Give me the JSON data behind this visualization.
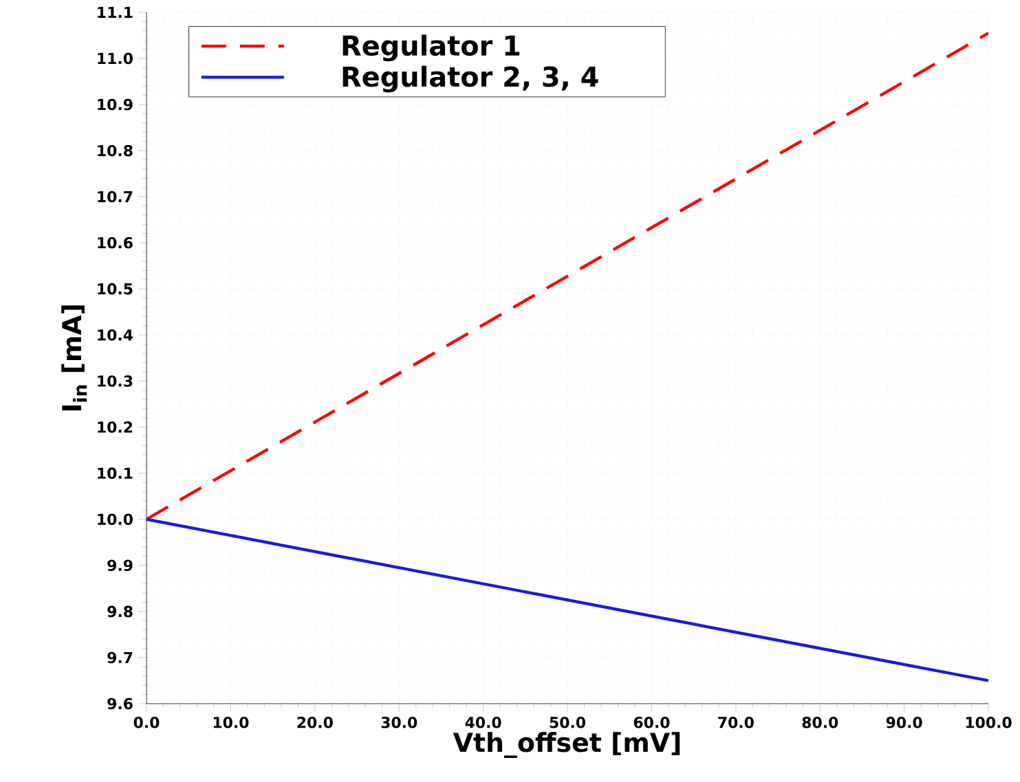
{
  "chart_data": {
    "type": "line",
    "xlabel": "Vth_offset [mV]",
    "ylabel": "I$_{in}$ [mA]",
    "x": [
      0,
      100
    ],
    "series": [
      {
        "name": "Regulator 1",
        "color": "#ff0000",
        "line_style": "dashed",
        "values": [
          10.0,
          11.055
        ]
      },
      {
        "name": "Regulator 2, 3, 4",
        "color": "#1a1ae0",
        "line_style": "solid",
        "values": [
          10.0,
          9.65
        ]
      }
    ],
    "xlim": [
      0,
      100
    ],
    "xticks": [
      {
        "value": 0,
        "label": "0.0"
      },
      {
        "value": 10,
        "label": "10.0"
      },
      {
        "value": 20,
        "label": "20.0"
      },
      {
        "value": 30,
        "label": "30.0"
      },
      {
        "value": 40,
        "label": "40.0"
      },
      {
        "value": 50,
        "label": "50.0"
      },
      {
        "value": 60,
        "label": "60.0"
      },
      {
        "value": 70,
        "label": "70.0"
      },
      {
        "value": 80,
        "label": "80.0"
      },
      {
        "value": 90,
        "label": "90.0"
      },
      {
        "value": 100,
        "label": "100.0"
      }
    ],
    "ylim": [
      9.6,
      11.1
    ],
    "yticks": [
      9.6,
      9.7,
      9.8,
      9.9,
      {
        "value": 10,
        "label": "10.0"
      },
      10.1,
      10.2,
      10.3,
      10.4,
      10.5,
      10.6,
      10.7,
      10.8,
      10.9,
      {
        "value": 11,
        "label": "11.0"
      },
      11.1
    ],
    "grid": true,
    "legend": "top left",
    "marker": "none"
  }
}
